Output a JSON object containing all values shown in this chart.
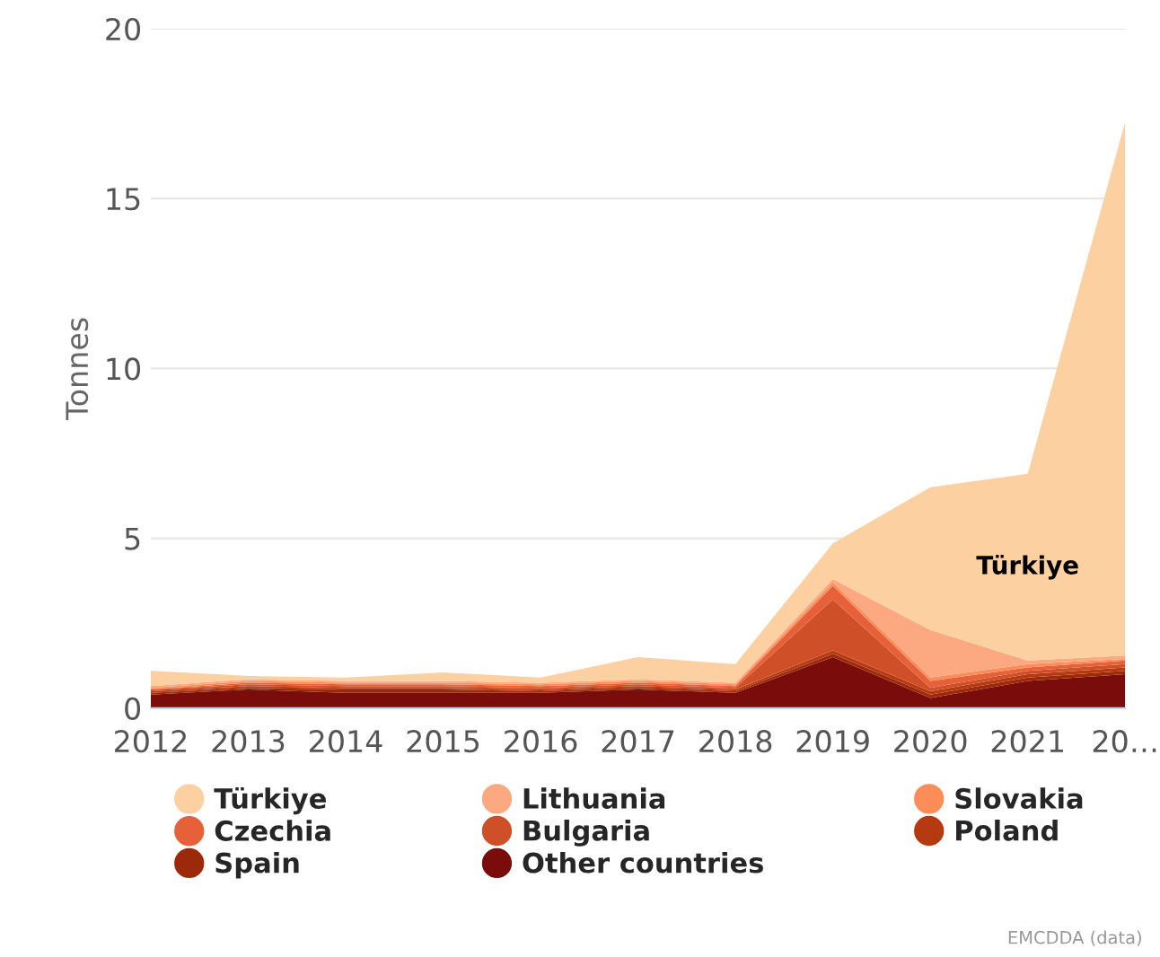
{
  "chart_data": {
    "type": "area",
    "stacked": true,
    "ylabel": "Tonnes",
    "categories": [
      "2012",
      "2013",
      "2014",
      "2015",
      "2016",
      "2017",
      "2018",
      "2019",
      "2020",
      "2021",
      "20…"
    ],
    "series": [
      {
        "name": "Other countries",
        "color": "#7a0c0c",
        "values": [
          0.4,
          0.55,
          0.45,
          0.45,
          0.45,
          0.55,
          0.45,
          1.5,
          0.3,
          0.8,
          1.0
        ]
      },
      {
        "name": "Spain",
        "color": "#9c2a0a",
        "values": [
          0.05,
          0.05,
          0.1,
          0.1,
          0.05,
          0.05,
          0.05,
          0.1,
          0.1,
          0.1,
          0.1
        ]
      },
      {
        "name": "Poland",
        "color": "#b53a12",
        "values": [
          0.05,
          0.05,
          0.05,
          0.05,
          0.05,
          0.05,
          0.05,
          0.1,
          0.1,
          0.1,
          0.1
        ]
      },
      {
        "name": "Bulgaria",
        "color": "#cf5028",
        "values": [
          0.05,
          0.05,
          0.05,
          0.05,
          0.05,
          0.05,
          0.05,
          1.5,
          0.1,
          0.1,
          0.1
        ]
      },
      {
        "name": "Czechia",
        "color": "#e6603a",
        "values": [
          0,
          0.05,
          0.05,
          0.05,
          0.05,
          0.05,
          0.05,
          0.4,
          0.2,
          0.1,
          0.1
        ]
      },
      {
        "name": "Slovakia",
        "color": "#fc8d59",
        "values": [
          0.05,
          0.05,
          0.05,
          0.05,
          0.05,
          0.05,
          0.05,
          0.1,
          0.1,
          0.1,
          0.05
        ]
      },
      {
        "name": "Lithuania",
        "color": "#fca982",
        "values": [
          0.05,
          0.05,
          0.05,
          0.05,
          0.05,
          0.05,
          0.05,
          0.1,
          1.4,
          0.1,
          0.1
        ]
      },
      {
        "name": "Türkiye",
        "color": "#fdd0a2",
        "values": [
          0.45,
          0.1,
          0.1,
          0.25,
          0.15,
          0.65,
          0.55,
          1.05,
          4.2,
          5.5,
          15.7
        ]
      }
    ],
    "ylim": [
      0,
      20
    ],
    "yticks": [
      0,
      5,
      10,
      15,
      20
    ],
    "grid": "y",
    "legend": "bottom",
    "annotations": [
      "EMCDDA (data)"
    ]
  }
}
